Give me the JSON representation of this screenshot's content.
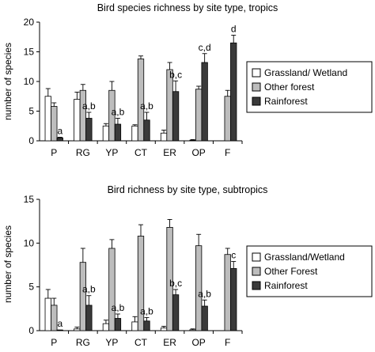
{
  "colors": {
    "grassland": "#ffffff",
    "other_forest": "#bdbdbd",
    "rainforest": "#3a3a3a",
    "stroke": "#000000"
  },
  "chart_data": [
    {
      "type": "bar",
      "title": "Bird species richness by site type, tropics",
      "xlabel": "",
      "ylabel": "number of species",
      "ylim": [
        0,
        20
      ],
      "yticks": [
        0,
        5,
        10,
        15,
        20
      ],
      "grid": false,
      "legend_position": "right",
      "categories": [
        "P",
        "RG",
        "YP",
        "CT",
        "ER",
        "OP",
        "F"
      ],
      "series": [
        {
          "name": "Grassland/ Wetland",
          "values": [
            7.5,
            7.0,
            2.5,
            2.5,
            1.3,
            0.1,
            null
          ],
          "errors": [
            1.3,
            1.2,
            0.4,
            0.2,
            0.5,
            0.1,
            null
          ]
        },
        {
          "name": "Other forest",
          "values": [
            5.8,
            8.5,
            8.5,
            13.8,
            12.0,
            8.7,
            7.5
          ],
          "errors": [
            0.6,
            1.0,
            1.5,
            0.5,
            1.2,
            0.5,
            1.0
          ]
        },
        {
          "name": "Rainforest",
          "values": [
            0.5,
            3.8,
            2.8,
            3.5,
            8.3,
            13.2,
            16.5
          ],
          "errors": [
            0.1,
            1.0,
            1.0,
            1.3,
            1.8,
            1.5,
            1.3
          ]
        }
      ],
      "annotations": [
        {
          "category": "P",
          "text": "a"
        },
        {
          "category": "RG",
          "text": "a,b"
        },
        {
          "category": "YP",
          "text": "a,b"
        },
        {
          "category": "CT",
          "text": "a,b"
        },
        {
          "category": "ER",
          "text": "b,c"
        },
        {
          "category": "OP",
          "text": "c,d"
        },
        {
          "category": "F",
          "text": "d"
        }
      ]
    },
    {
      "type": "bar",
      "title": "Bird richness by site type, subtropics",
      "xlabel": "",
      "ylabel": "number of species",
      "ylim": [
        0,
        15
      ],
      "yticks": [
        0,
        5,
        10,
        15
      ],
      "grid": false,
      "legend_position": "right",
      "categories": [
        "P",
        "RG",
        "YP",
        "CT",
        "ER",
        "OP",
        "F"
      ],
      "series": [
        {
          "name": "Grassland/Wetland",
          "values": [
            3.7,
            0.2,
            0.8,
            1.0,
            0.3,
            0.1,
            null
          ],
          "errors": [
            1.0,
            0.2,
            0.4,
            0.6,
            0.2,
            0.1,
            null
          ]
        },
        {
          "name": "Other Forest",
          "values": [
            2.9,
            7.8,
            9.4,
            10.8,
            11.8,
            9.7,
            8.7
          ],
          "errors": [
            0.8,
            1.6,
            1.0,
            1.3,
            0.9,
            1.3,
            0.7
          ]
        },
        {
          "name": "Rainforest",
          "values": [
            0.05,
            2.9,
            1.4,
            1.1,
            4.1,
            2.8,
            7.1
          ],
          "errors": [
            0.02,
            1.1,
            0.5,
            0.4,
            0.6,
            0.7,
            0.8
          ]
        }
      ],
      "annotations": [
        {
          "category": "P",
          "text": "a"
        },
        {
          "category": "RG",
          "text": "a,b"
        },
        {
          "category": "YP",
          "text": "a,b"
        },
        {
          "category": "CT",
          "text": "a,b"
        },
        {
          "category": "ER",
          "text": "b,c"
        },
        {
          "category": "OP",
          "text": "a,b"
        },
        {
          "category": "F",
          "text": "c"
        }
      ]
    }
  ]
}
